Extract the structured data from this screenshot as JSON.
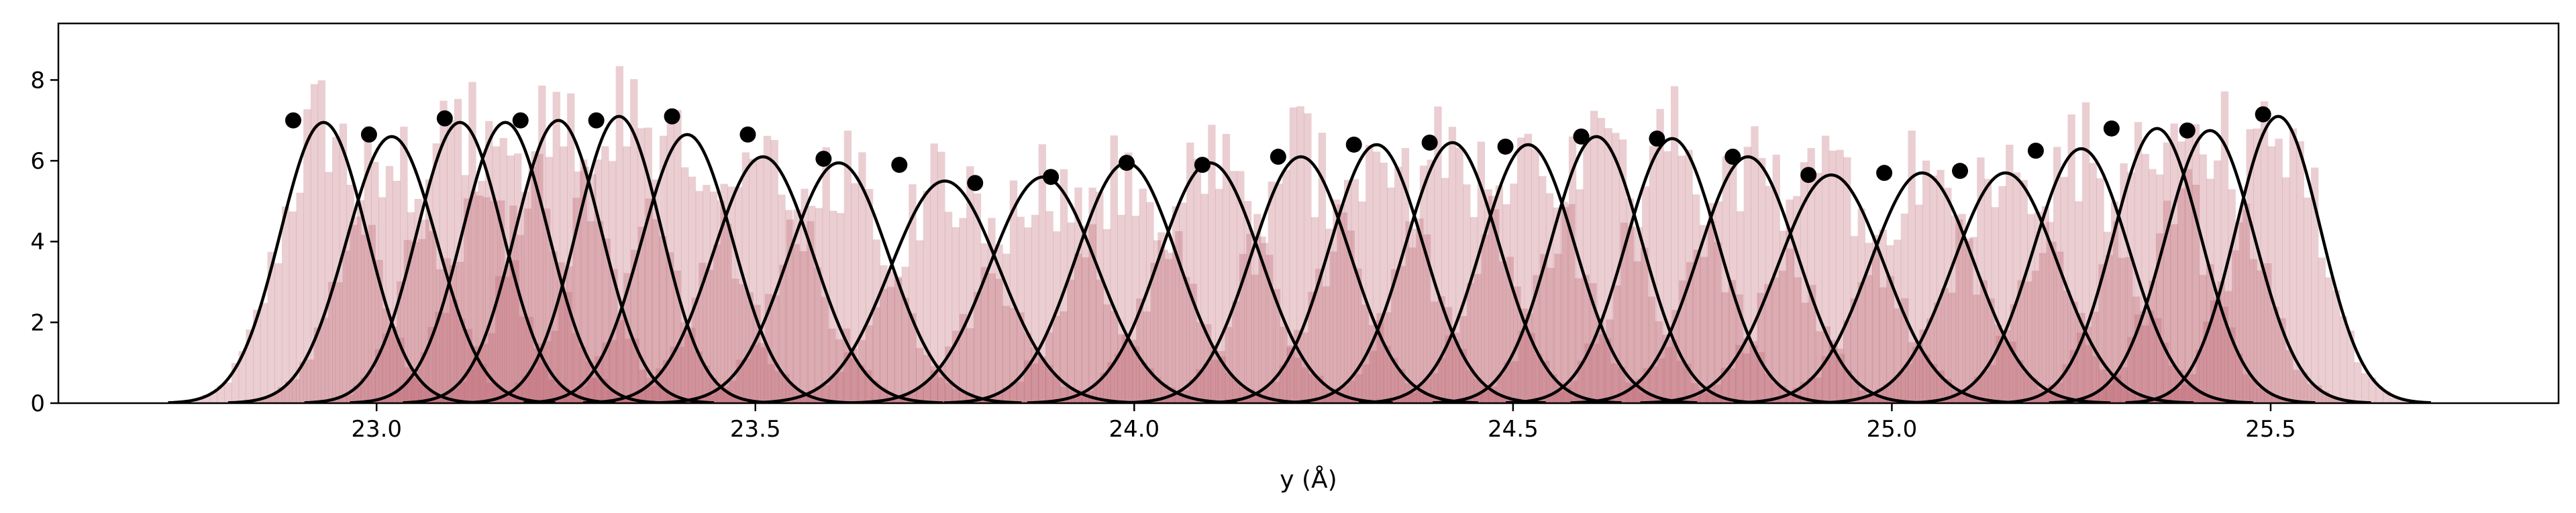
{
  "chart_data": {
    "type": "histogram-with-gaussian-fits",
    "xlabel": "y (Å)",
    "ylabel": "",
    "title": "",
    "xlim": [
      22.58,
      25.88
    ],
    "ylim": [
      0,
      9.4
    ],
    "x_ticks": [
      "23.0",
      "23.5",
      "24.0",
      "24.5",
      "25.0",
      "25.5"
    ],
    "x_tick_values": [
      23.0,
      23.5,
      24.0,
      24.5,
      25.0,
      25.5
    ],
    "y_ticks": [
      "0",
      "2",
      "4",
      "6",
      "8"
    ],
    "y_tick_values": [
      0,
      2,
      4,
      6,
      8
    ],
    "histogram_color": "#b85c69",
    "histogram_alpha": 0.3,
    "curve_color": "#000000",
    "grid": false,
    "windows": [
      {
        "center": 22.9,
        "mu": 22.93,
        "sigma": 0.057,
        "peak": 6.95
      },
      {
        "center": 23.0,
        "mu": 23.02,
        "sigma": 0.06,
        "peak": 6.6
      },
      {
        "center": 23.1,
        "mu": 23.11,
        "sigma": 0.057,
        "peak": 6.95
      },
      {
        "center": 23.2,
        "mu": 23.17,
        "sigma": 0.057,
        "peak": 6.95
      },
      {
        "center": 23.3,
        "mu": 23.24,
        "sigma": 0.057,
        "peak": 7.0
      },
      {
        "center": 23.4,
        "mu": 23.32,
        "sigma": 0.056,
        "peak": 7.1
      },
      {
        "center": 23.5,
        "mu": 23.41,
        "sigma": 0.06,
        "peak": 6.65
      },
      {
        "center": 23.6,
        "mu": 23.51,
        "sigma": 0.066,
        "peak": 6.1
      },
      {
        "center": 23.7,
        "mu": 23.61,
        "sigma": 0.067,
        "peak": 5.95
      },
      {
        "center": 23.8,
        "mu": 23.75,
        "sigma": 0.072,
        "peak": 5.5
      },
      {
        "center": 23.9,
        "mu": 23.88,
        "sigma": 0.071,
        "peak": 5.6
      },
      {
        "center": 24.0,
        "mu": 23.99,
        "sigma": 0.067,
        "peak": 5.95
      },
      {
        "center": 24.1,
        "mu": 24.1,
        "sigma": 0.067,
        "peak": 5.95
      },
      {
        "center": 24.2,
        "mu": 24.22,
        "sigma": 0.065,
        "peak": 6.1
      },
      {
        "center": 24.3,
        "mu": 24.32,
        "sigma": 0.062,
        "peak": 6.4
      },
      {
        "center": 24.4,
        "mu": 24.42,
        "sigma": 0.062,
        "peak": 6.45
      },
      {
        "center": 24.5,
        "mu": 24.52,
        "sigma": 0.062,
        "peak": 6.4
      },
      {
        "center": 24.6,
        "mu": 24.61,
        "sigma": 0.06,
        "peak": 6.6
      },
      {
        "center": 24.7,
        "mu": 24.71,
        "sigma": 0.061,
        "peak": 6.55
      },
      {
        "center": 24.8,
        "mu": 24.81,
        "sigma": 0.065,
        "peak": 6.1
      },
      {
        "center": 24.9,
        "mu": 24.92,
        "sigma": 0.07,
        "peak": 5.65
      },
      {
        "center": 25.0,
        "mu": 25.04,
        "sigma": 0.069,
        "peak": 5.7
      },
      {
        "center": 25.1,
        "mu": 25.15,
        "sigma": 0.069,
        "peak": 5.7
      },
      {
        "center": 25.2,
        "mu": 25.25,
        "sigma": 0.063,
        "peak": 6.3
      },
      {
        "center": 25.3,
        "mu": 25.35,
        "sigma": 0.058,
        "peak": 6.8
      },
      {
        "center": 25.4,
        "mu": 25.42,
        "sigma": 0.059,
        "peak": 6.75
      },
      {
        "center": 25.5,
        "mu": 25.51,
        "sigma": 0.056,
        "peak": 7.1
      }
    ],
    "dots": [
      {
        "x": 22.89,
        "y": 7.0
      },
      {
        "x": 22.99,
        "y": 6.65
      },
      {
        "x": 23.09,
        "y": 7.05
      },
      {
        "x": 23.19,
        "y": 7.0
      },
      {
        "x": 23.29,
        "y": 7.0
      },
      {
        "x": 23.39,
        "y": 7.1
      },
      {
        "x": 23.49,
        "y": 6.65
      },
      {
        "x": 23.59,
        "y": 6.05
      },
      {
        "x": 23.69,
        "y": 5.9
      },
      {
        "x": 23.79,
        "y": 5.45
      },
      {
        "x": 23.89,
        "y": 5.6
      },
      {
        "x": 23.99,
        "y": 5.95
      },
      {
        "x": 24.09,
        "y": 5.9
      },
      {
        "x": 24.19,
        "y": 6.1
      },
      {
        "x": 24.29,
        "y": 6.4
      },
      {
        "x": 24.39,
        "y": 6.45
      },
      {
        "x": 24.49,
        "y": 6.35
      },
      {
        "x": 24.59,
        "y": 6.6
      },
      {
        "x": 24.69,
        "y": 6.55
      },
      {
        "x": 24.79,
        "y": 6.1
      },
      {
        "x": 24.89,
        "y": 5.65
      },
      {
        "x": 24.99,
        "y": 5.7
      },
      {
        "x": 25.09,
        "y": 5.75
      },
      {
        "x": 25.19,
        "y": 6.25
      },
      {
        "x": 25.29,
        "y": 6.8
      },
      {
        "x": 25.39,
        "y": 6.75
      },
      {
        "x": 25.49,
        "y": 7.15
      }
    ]
  }
}
